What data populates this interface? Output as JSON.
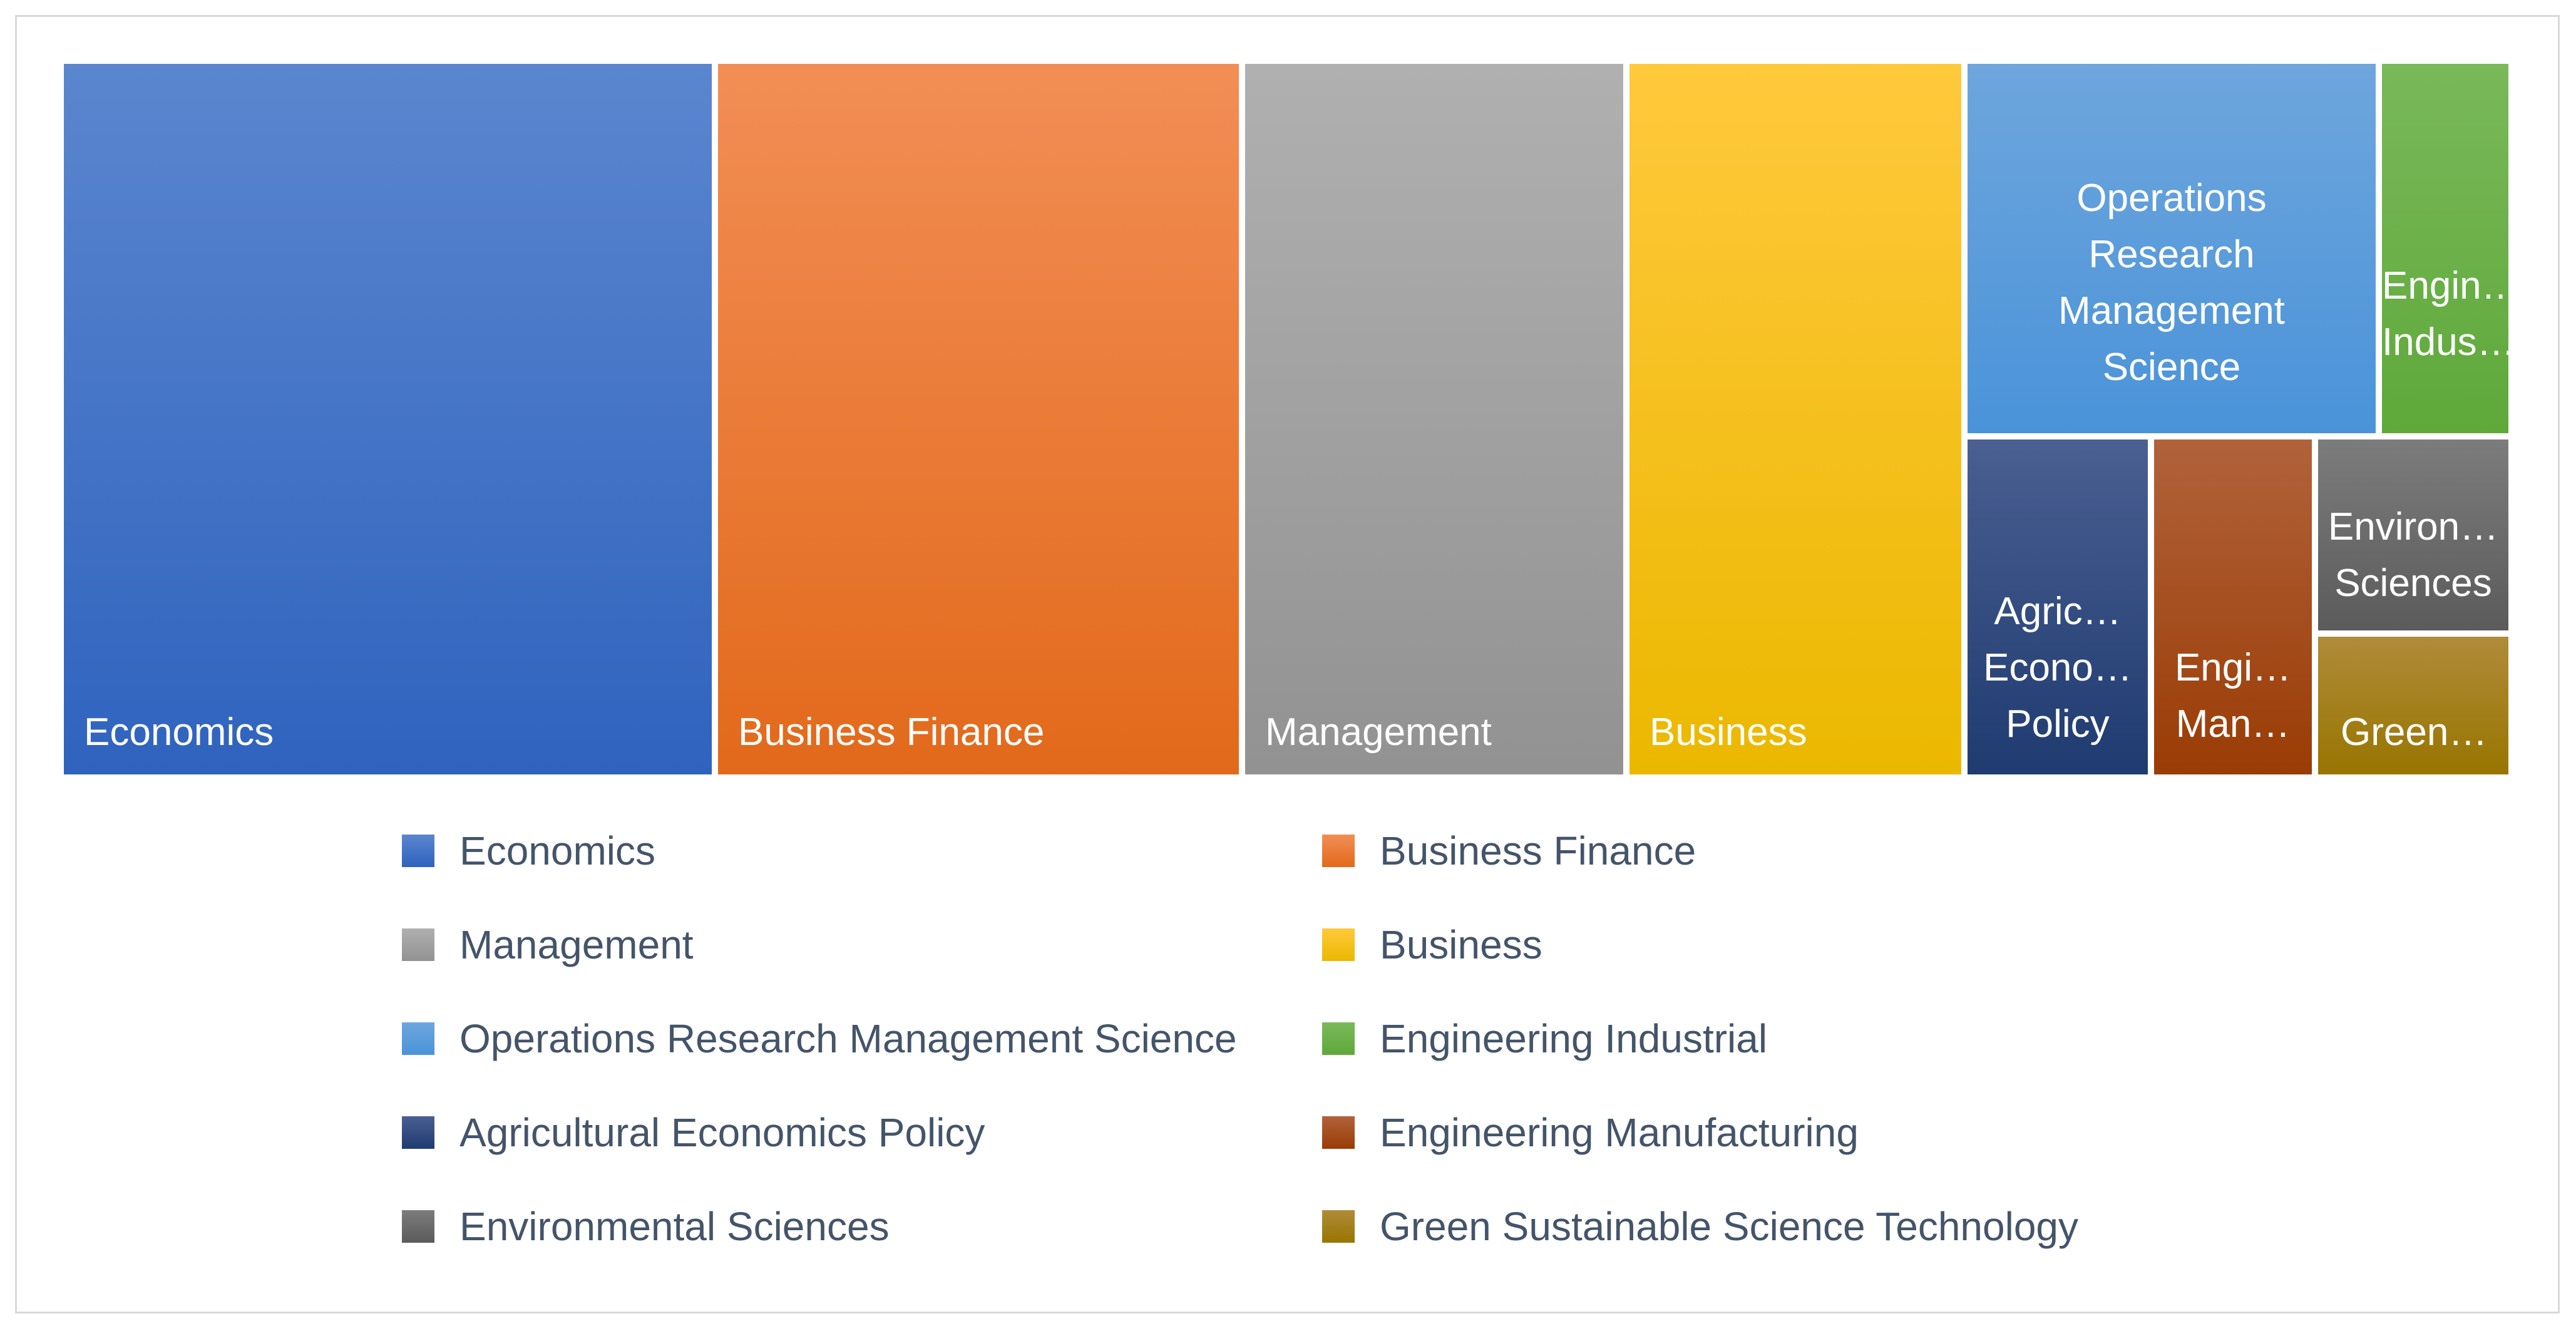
{
  "chart_data": {
    "type": "treemap",
    "categories": [
      "Economics",
      "Business Finance",
      "Management",
      "Business",
      "Operations Research Management Science",
      "Engineering Industrial",
      "Agricultural Economics Policy",
      "Engineering Manufacturing",
      "Environmental Sciences",
      "Green Sustainable Science Technology"
    ],
    "values": [
      1049,
      840,
      614,
      540,
      396,
      168,
      167,
      182,
      96,
      54
    ],
    "tile_labels": [
      "Economics",
      "Business Finance",
      "Management",
      "Business",
      "Operations\nResearch\nManagement\nScience",
      "Engin…\nIndus…",
      "Agric…\nEcono…\nPolicy",
      "Engi…\nMan…",
      "Environ…\nSciences",
      "Green…"
    ],
    "colors": [
      [
        "#5b86cf",
        "#2f63be"
      ],
      [
        "#f28e55",
        "#e2691b"
      ],
      [
        "#b0b0b0",
        "#929292"
      ],
      [
        "#ffc93c",
        "#ebb800"
      ],
      [
        "#6ea6dd",
        "#4a93d9"
      ],
      [
        "#7ab85a",
        "#5ea93a"
      ],
      [
        "#4a5f92",
        "#1f3b70"
      ],
      [
        "#b1623b",
        "#9a3c05"
      ],
      [
        "#7c7c7c",
        "#5b5b5b"
      ],
      [
        "#b08b3a",
        "#987500"
      ]
    ],
    "legend": {
      "placement": "bottom",
      "entries": [
        "Economics",
        "Business Finance",
        "Management",
        "Business",
        "Operations Research Management Science",
        "Engineering Industrial",
        "Agricultural Economics Policy",
        "Engineering Manufacturing",
        "Environmental Sciences",
        "Green Sustainable Science Technology"
      ]
    }
  }
}
